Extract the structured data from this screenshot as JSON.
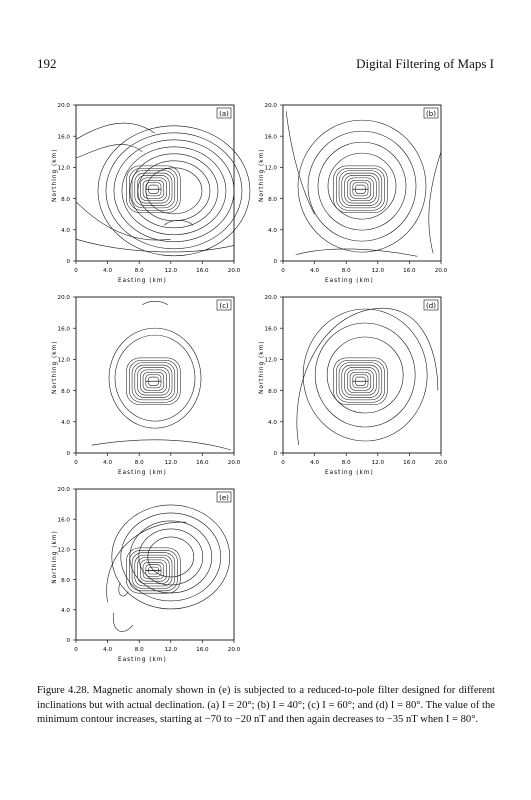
{
  "header": {
    "page_number": "192",
    "running_title": "Digital Filtering of Maps I"
  },
  "panels": [
    {
      "label": "(a)",
      "x_axis_label": "Easting (km)",
      "y_axis_label": "Northing (km)",
      "x_ticks": [
        "0",
        "4.0",
        "8.0",
        "12.0",
        "16.0",
        "20.0"
      ],
      "y_ticks": [
        "0",
        "4.0",
        "8.0",
        "12.0",
        "16.0",
        "20.0"
      ]
    },
    {
      "label": "(b)",
      "x_axis_label": "Easting (km)",
      "y_axis_label": "Northing (km)",
      "x_ticks": [
        "0",
        "4.0",
        "8.0",
        "12.0",
        "16.0",
        "20.0"
      ],
      "y_ticks": [
        "0",
        "4.0",
        "8.0",
        "12.0",
        "16.0",
        "20.0"
      ]
    },
    {
      "label": "(c)",
      "x_axis_label": "Easting (km)",
      "y_axis_label": "Northing (km)",
      "x_ticks": [
        "0",
        "4.0",
        "8.0",
        "12.0",
        "16.0",
        "20.0"
      ],
      "y_ticks": [
        "0",
        "4.0",
        "8.0",
        "12.0",
        "16.0",
        "20.0"
      ]
    },
    {
      "label": "(d)",
      "x_axis_label": "Easting (km)",
      "y_axis_label": "Northing (km)",
      "x_ticks": [
        "0",
        "4.0",
        "8.0",
        "12.0",
        "16.0",
        "20.0"
      ],
      "y_ticks": [
        "0",
        "4.0",
        "8.0",
        "12.0",
        "16.0",
        "20.0"
      ]
    },
    {
      "label": "(e)",
      "x_axis_label": "Easting (km)",
      "y_axis_label": "Northing (km)",
      "x_ticks": [
        "0",
        "4.0",
        "8.0",
        "12.0",
        "16.0",
        "20.0"
      ],
      "y_ticks": [
        "0",
        "4.0",
        "8.0",
        "12.0",
        "16.0",
        "20.0"
      ]
    }
  ],
  "caption": "Figure 4.28. Magnetic anomaly shown in (e) is subjected to a reduced-to-pole filter designed for different inclinations but with actual declination. (a) I = 20°; (b) I = 40°; (c) I = 60°; and (d) I = 80°. The value of the minimum contour increases, starting at −70 to −20 nT and then again decreases to −35 nT when I = 80°."
}
